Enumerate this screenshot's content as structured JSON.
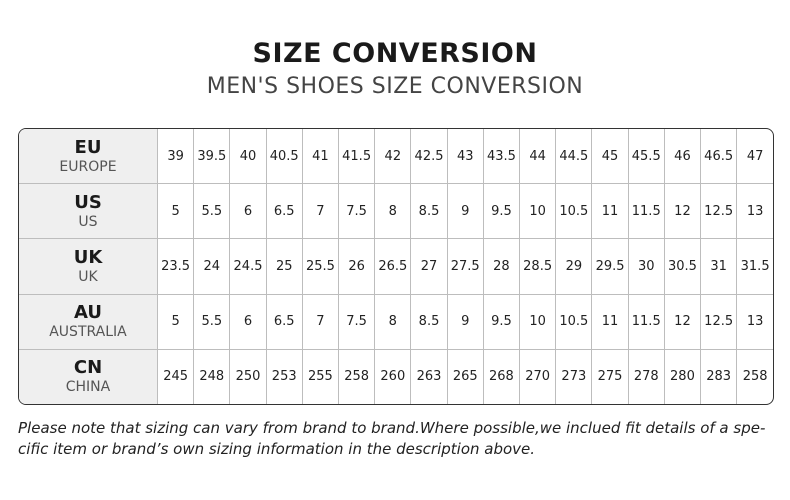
{
  "title": "SIZE CONVERSION",
  "subtitle": "MEN'S SHOES SIZE CONVERSION",
  "rows": [
    {
      "code": "EU",
      "name": "EUROPE",
      "values": [
        "39",
        "39.5",
        "40",
        "40.5",
        "41",
        "41.5",
        "42",
        "42.5",
        "43",
        "43.5",
        "44",
        "44.5",
        "45",
        "45.5",
        "46",
        "46.5",
        "47"
      ]
    },
    {
      "code": "US",
      "name": "US",
      "values": [
        "5",
        "5.5",
        "6",
        "6.5",
        "7",
        "7.5",
        "8",
        "8.5",
        "9",
        "9.5",
        "10",
        "10.5",
        "11",
        "11.5",
        "12",
        "12.5",
        "13"
      ]
    },
    {
      "code": "UK",
      "name": "UK",
      "values": [
        "23.5",
        "24",
        "24.5",
        "25",
        "25.5",
        "26",
        "26.5",
        "27",
        "27.5",
        "28",
        "28.5",
        "29",
        "29.5",
        "30",
        "30.5",
        "31",
        "31.5"
      ]
    },
    {
      "code": "AU",
      "name": "AUSTRALIA",
      "values": [
        "5",
        "5.5",
        "6",
        "6.5",
        "7",
        "7.5",
        "8",
        "8.5",
        "9",
        "9.5",
        "10",
        "10.5",
        "11",
        "11.5",
        "12",
        "12.5",
        "13"
      ]
    },
    {
      "code": "CN",
      "name": "CHINA",
      "values": [
        "245",
        "248",
        "250",
        "253",
        "255",
        "258",
        "260",
        "263",
        "265",
        "268",
        "270",
        "273",
        "275",
        "278",
        "280",
        "283",
        "258"
      ]
    }
  ],
  "note_line1": "Please note that sizing can vary from brand to brand.Where possible,we inclued fit details of a spe-",
  "note_line2": "cific item or brand’s own sizing information in the description above."
}
